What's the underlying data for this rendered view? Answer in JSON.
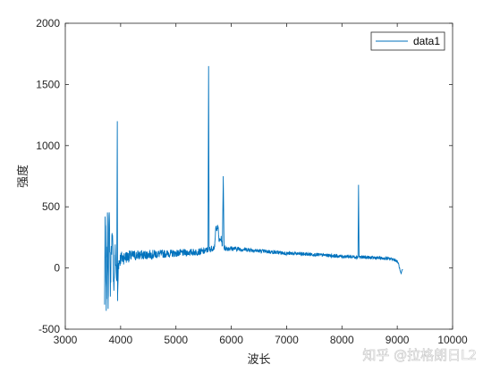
{
  "chart_data": {
    "type": "line",
    "title": "",
    "xlabel": "波长",
    "ylabel": "强度",
    "xlim": [
      3000,
      10000
    ],
    "ylim": [
      -500,
      2000
    ],
    "xticks": [
      3000,
      4000,
      5000,
      6000,
      7000,
      8000,
      9000,
      10000
    ],
    "yticks": [
      -500,
      0,
      500,
      1000,
      1500,
      2000
    ],
    "grid": false,
    "legend_position": "top-right",
    "series": [
      {
        "name": "data1",
        "color": "#0072BD",
        "noise": [
          [
            3700,
            160
          ],
          [
            3750,
            150
          ],
          [
            3800,
            120
          ],
          [
            3850,
            100
          ],
          [
            3900,
            80
          ],
          [
            4000,
            60
          ],
          [
            4200,
            45
          ],
          [
            4500,
            38
          ],
          [
            5000,
            30
          ],
          [
            5500,
            28
          ],
          [
            6000,
            20
          ],
          [
            6500,
            16
          ],
          [
            7000,
            15
          ],
          [
            7500,
            14
          ],
          [
            8000,
            14
          ],
          [
            8500,
            14
          ],
          [
            8900,
            12
          ],
          [
            9000,
            10
          ],
          [
            9100,
            5
          ]
        ],
        "points": [
          [
            3710,
            -300
          ],
          [
            3720,
            420
          ],
          [
            3740,
            -350
          ],
          [
            3760,
            400
          ],
          [
            3775,
            -250
          ],
          [
            3790,
            430
          ],
          [
            3800,
            300
          ],
          [
            3815,
            -200
          ],
          [
            3830,
            180
          ],
          [
            3850,
            250
          ],
          [
            3880,
            -150
          ],
          [
            3900,
            150
          ],
          [
            3930,
            -100
          ],
          [
            3940,
            1200
          ],
          [
            3945,
            -270
          ],
          [
            3960,
            40
          ],
          [
            4000,
            80
          ],
          [
            4200,
            100
          ],
          [
            4500,
            110
          ],
          [
            5000,
            120
          ],
          [
            5500,
            135
          ],
          [
            5580,
            150
          ],
          [
            5590,
            1650
          ],
          [
            5600,
            150
          ],
          [
            5700,
            170
          ],
          [
            5720,
            330
          ],
          [
            5760,
            330
          ],
          [
            5780,
            220
          ],
          [
            5820,
            240
          ],
          [
            5840,
            180
          ],
          [
            5855,
            750
          ],
          [
            5870,
            160
          ],
          [
            6000,
            160
          ],
          [
            6300,
            150
          ],
          [
            6500,
            140
          ],
          [
            7000,
            120
          ],
          [
            7500,
            110
          ],
          [
            8000,
            95
          ],
          [
            8290,
            90
          ],
          [
            8300,
            680
          ],
          [
            8310,
            90
          ],
          [
            8500,
            85
          ],
          [
            8700,
            80
          ],
          [
            8900,
            75
          ],
          [
            8980,
            60
          ],
          [
            9020,
            40
          ],
          [
            9050,
            -20
          ],
          [
            9070,
            -50
          ],
          [
            9085,
            -20
          ],
          [
            9100,
            -15
          ]
        ]
      }
    ],
    "watermark": "知乎 @拉格朗日L2"
  }
}
